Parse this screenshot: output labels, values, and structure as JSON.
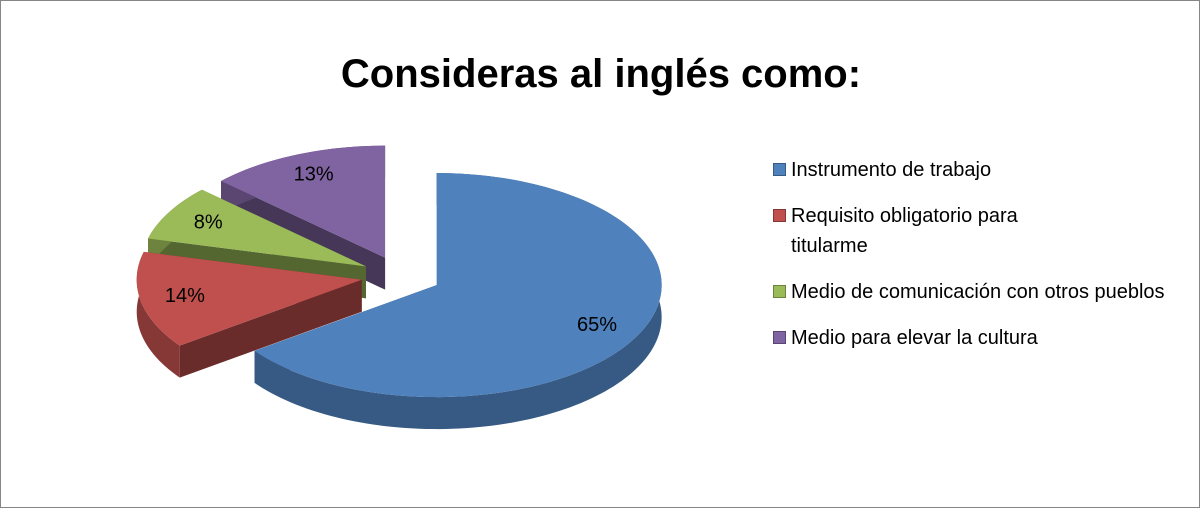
{
  "chart_data": {
    "type": "pie",
    "title": "Consideras al inglés como:",
    "categories": [
      "Instrumento de trabajo",
      "Requisito obligatorio para titularme",
      "Medio de comunicación con otros pueblos",
      "Medio para elevar la cultura"
    ],
    "values": [
      65,
      14,
      8,
      13
    ],
    "value_labels": [
      "65%",
      "14%",
      "8%",
      "13%"
    ],
    "colors": [
      "#4f81bd",
      "#c0504d",
      "#9bbb59",
      "#8064a2"
    ],
    "legend": "right"
  }
}
